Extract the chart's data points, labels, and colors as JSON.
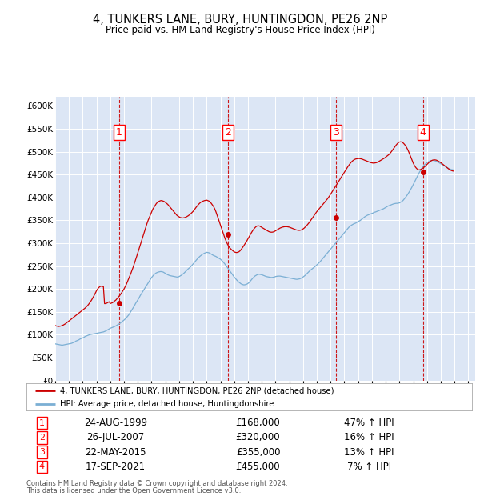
{
  "title": "4, TUNKERS LANE, BURY, HUNTINGDON, PE26 2NP",
  "subtitle": "Price paid vs. HM Land Registry's House Price Index (HPI)",
  "footer1": "Contains HM Land Registry data © Crown copyright and database right 2024.",
  "footer2": "This data is licensed under the Open Government Licence v3.0.",
  "legend_house": "4, TUNKERS LANE, BURY, HUNTINGDON, PE26 2NP (detached house)",
  "legend_hpi": "HPI: Average price, detached house, Huntingdonshire",
  "purchases": [
    {
      "num": 1,
      "date_str": "24-AUG-1999",
      "price_str": "£168,000",
      "pct_str": "47% ↑ HPI",
      "year": 1999.63
    },
    {
      "num": 2,
      "date_str": "26-JUL-2007",
      "price_str": "£320,000",
      "pct_str": "16% ↑ HPI",
      "year": 2007.55
    },
    {
      "num": 3,
      "date_str": "22-MAY-2015",
      "price_str": "£355,000",
      "pct_str": "13% ↑ HPI",
      "year": 2015.38
    },
    {
      "num": 4,
      "date_str": "17-SEP-2021",
      "price_str": "£455,000",
      "pct_str": "7% ↑ HPI",
      "year": 2021.71
    }
  ],
  "purchase_values": [
    168000,
    320000,
    355000,
    455000
  ],
  "ylim": [
    0,
    620000
  ],
  "yticks": [
    0,
    50000,
    100000,
    150000,
    200000,
    250000,
    300000,
    350000,
    400000,
    450000,
    500000,
    550000,
    600000
  ],
  "x_min": 1995.0,
  "x_max": 2025.5,
  "background_color": "#dce6f5",
  "house_color": "#cc0000",
  "hpi_color": "#7bafd4",
  "grid_color": "#ffffff",
  "hpi_data_monthly": [
    80000,
    79500,
    79000,
    78500,
    78000,
    77500,
    77000,
    77500,
    78000,
    78500,
    79000,
    79500,
    80000,
    80500,
    81000,
    82000,
    83000,
    84000,
    86000,
    87000,
    88000,
    89500,
    91000,
    92000,
    93000,
    94000,
    96000,
    97000,
    98000,
    99000,
    100000,
    100500,
    101000,
    101500,
    102000,
    102500,
    103000,
    103500,
    104000,
    104500,
    105000,
    105500,
    106000,
    107000,
    108000,
    109500,
    111000,
    112500,
    114000,
    115000,
    116000,
    117000,
    118000,
    119500,
    121000,
    122500,
    124000,
    126000,
    128000,
    130000,
    132000,
    134500,
    137000,
    140000,
    143000,
    147000,
    151000,
    155000,
    159000,
    163000,
    168000,
    172000,
    176000,
    180000,
    185000,
    189000,
    193000,
    197000,
    201000,
    205000,
    209000,
    213000,
    217000,
    221000,
    225000,
    228000,
    231000,
    233000,
    235000,
    236000,
    237000,
    237500,
    238000,
    237500,
    237000,
    235500,
    234000,
    232500,
    231000,
    230000,
    229000,
    228500,
    228000,
    227500,
    227000,
    226500,
    226000,
    226000,
    227000,
    228500,
    230000,
    232000,
    234000,
    236500,
    239000,
    241500,
    244000,
    246000,
    248500,
    251000,
    254000,
    257000,
    260000,
    263000,
    266000,
    268500,
    271000,
    273000,
    275000,
    276500,
    278000,
    279000,
    280000,
    279500,
    279000,
    277500,
    276000,
    274500,
    273000,
    272000,
    271000,
    269500,
    268000,
    266500,
    265000,
    262500,
    260000,
    257000,
    254000,
    250500,
    247000,
    243500,
    240000,
    236500,
    233000,
    229500,
    226000,
    223000,
    220000,
    217500,
    215000,
    213000,
    211000,
    210000,
    209000,
    209000,
    209500,
    210500,
    212000,
    214000,
    217000,
    220000,
    223000,
    225500,
    228000,
    229500,
    231000,
    232000,
    232000,
    231500,
    231000,
    230000,
    229000,
    228000,
    227000,
    226500,
    226000,
    225500,
    225000,
    225000,
    225500,
    226000,
    227000,
    227500,
    228000,
    228000,
    228000,
    227500,
    227000,
    226500,
    226000,
    225500,
    225000,
    224500,
    224000,
    223500,
    223000,
    222500,
    222000,
    221500,
    221000,
    221000,
    221500,
    222000,
    223000,
    224500,
    226000,
    228000,
    230000,
    232500,
    235000,
    237500,
    240000,
    242000,
    244000,
    246000,
    248000,
    250000,
    252500,
    255000,
    257500,
    260000,
    263000,
    266000,
    269000,
    272000,
    275000,
    278000,
    281000,
    284000,
    287000,
    290000,
    293000,
    296000,
    299000,
    302000,
    305000,
    308000,
    311000,
    314000,
    317000,
    320000,
    323000,
    326000,
    329000,
    332000,
    335000,
    337000,
    339000,
    340500,
    342000,
    343000,
    344000,
    345500,
    347000,
    348500,
    350000,
    352000,
    354000,
    356000,
    358000,
    359500,
    361000,
    362000,
    363000,
    364000,
    365000,
    366000,
    367500,
    368000,
    369000,
    370000,
    371000,
    372000,
    373000,
    374000,
    375000,
    376500,
    378000,
    379500,
    381000,
    382000,
    383000,
    384000,
    385000,
    386000,
    386500,
    387000,
    387000,
    387500,
    388000,
    389500,
    391000,
    393000,
    396000,
    399000,
    402500,
    406000,
    410000,
    414000,
    418500,
    423000,
    428000,
    433000,
    438000,
    443000,
    448000,
    453000,
    457500,
    462000,
    465500,
    469000,
    471500,
    474000,
    476000,
    477500,
    479000,
    480000,
    480500,
    481000,
    480500,
    480000,
    479000,
    478000,
    476500,
    475000,
    473500,
    472000,
    470500,
    469000,
    467500,
    466000,
    464500,
    463000,
    462000,
    461000,
    460500,
    460000
  ],
  "house_data_monthly": [
    120000,
    119000,
    118500,
    118000,
    118500,
    119000,
    120000,
    121000,
    122500,
    124000,
    126000,
    128000,
    130000,
    132000,
    134000,
    136000,
    138000,
    140000,
    142000,
    144000,
    146000,
    148000,
    150000,
    152000,
    154000,
    156000,
    158000,
    160500,
    163000,
    166000,
    169500,
    173000,
    177000,
    181500,
    186000,
    191000,
    196000,
    200000,
    203000,
    205000,
    206000,
    205500,
    205000,
    167800,
    168000,
    169000,
    170500,
    172000,
    168000,
    169000,
    170000,
    172000,
    174000,
    176000,
    179000,
    182000,
    185000,
    188500,
    192000,
    196000,
    200000,
    205000,
    210000,
    216000,
    222000,
    228000,
    234500,
    241000,
    248000,
    255500,
    263000,
    271000,
    279000,
    287000,
    295000,
    303000,
    311000,
    319000,
    327000,
    335000,
    343000,
    350000,
    356000,
    362000,
    368000,
    374000,
    378000,
    382000,
    386000,
    389000,
    391000,
    392000,
    393000,
    393000,
    392000,
    391000,
    389000,
    387000,
    385000,
    382000,
    379000,
    376000,
    373000,
    370000,
    367000,
    364000,
    361000,
    359000,
    357500,
    356000,
    355500,
    355000,
    355500,
    356000,
    357000,
    358500,
    360000,
    362000,
    364000,
    366500,
    369000,
    372000,
    375500,
    379000,
    382000,
    385000,
    387500,
    389500,
    391000,
    392000,
    393000,
    393500,
    394000,
    393000,
    392000,
    390000,
    387000,
    383500,
    380000,
    375000,
    369000,
    362000,
    354500,
    347000,
    339500,
    332000,
    324500,
    317000,
    310000,
    304000,
    298500,
    294000,
    290000,
    287500,
    285000,
    283000,
    281000,
    280000,
    279500,
    280000,
    281000,
    283000,
    286000,
    289500,
    293000,
    297000,
    301000,
    305000,
    309500,
    314000,
    318500,
    323000,
    327000,
    330500,
    333500,
    336000,
    337500,
    338000,
    337500,
    336000,
    334500,
    333000,
    331500,
    330000,
    328500,
    327000,
    325500,
    324500,
    324000,
    324000,
    324500,
    325500,
    327000,
    328500,
    330000,
    331500,
    333000,
    334000,
    335000,
    335500,
    336000,
    336000,
    336000,
    335500,
    335000,
    334000,
    333000,
    332000,
    331000,
    330000,
    329000,
    328500,
    328000,
    328000,
    328500,
    329500,
    331000,
    333000,
    335500,
    338000,
    341000,
    344000,
    347500,
    351000,
    354500,
    358000,
    362000,
    365500,
    369000,
    372000,
    375000,
    378000,
    381000,
    384000,
    387000,
    390000,
    393000,
    396000,
    399500,
    403000,
    407000,
    411000,
    415000,
    419000,
    423000,
    427000,
    431000,
    435000,
    439000,
    443000,
    447000,
    451000,
    455000,
    459000,
    463000,
    467000,
    470500,
    474000,
    477000,
    479500,
    481500,
    483000,
    484000,
    484500,
    485000,
    485000,
    484500,
    484000,
    483000,
    482000,
    481000,
    480000,
    479000,
    478000,
    477000,
    476000,
    475500,
    475000,
    475000,
    475500,
    476000,
    477000,
    478500,
    480000,
    481500,
    483000,
    484500,
    486000,
    488000,
    490000,
    492000,
    494000,
    497000,
    500000,
    503500,
    507000,
    510500,
    514000,
    517000,
    519500,
    521000,
    521500,
    521000,
    519500,
    517000,
    514000,
    510000,
    505500,
    500000,
    494000,
    487500,
    481000,
    475000,
    470000,
    466000,
    463000,
    461000,
    460000,
    460500,
    461500,
    463000,
    465000,
    467000,
    469500,
    472000,
    474500,
    477000,
    479000,
    480500,
    481500,
    482000,
    482000,
    481500,
    480500,
    479000,
    477500,
    476000,
    474000,
    472000,
    470000,
    468000,
    466000,
    464000,
    462000,
    460500,
    459000,
    458000,
    457500
  ]
}
